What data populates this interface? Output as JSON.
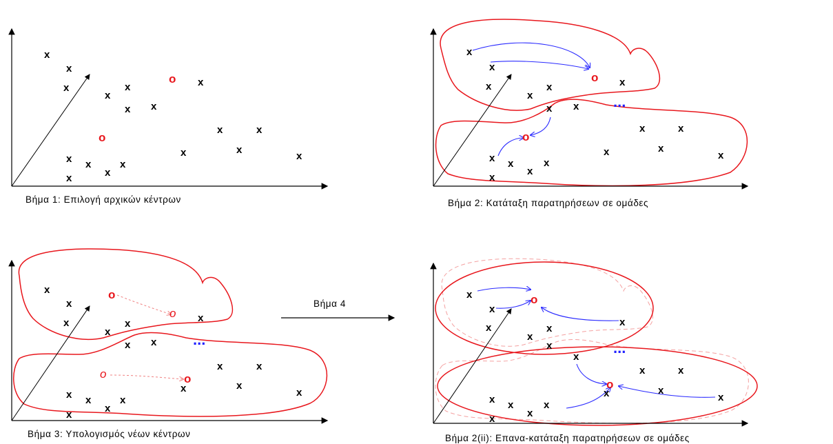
{
  "symbols": {
    "observation": "x",
    "center": "o",
    "ellipsis": "..."
  },
  "captions": {
    "step1": "Βήμα 1: Επιλογή αρχικών κέντρων",
    "step2": "Βήμα 2: Κατάταξη παρατηρήσεων σε ομάδες",
    "step3": "Βήμα 3: Υπολογισμός νέων κέντρων",
    "step4": "Βήμα 4",
    "step2ii": "Βήμα 2(ii): Επανα-κατάταξη παρατηρήσεων σε ομάδες"
  },
  "colors": {
    "center": "#e8161c",
    "arrows": "#2a2aff",
    "axes": "#000000"
  }
}
